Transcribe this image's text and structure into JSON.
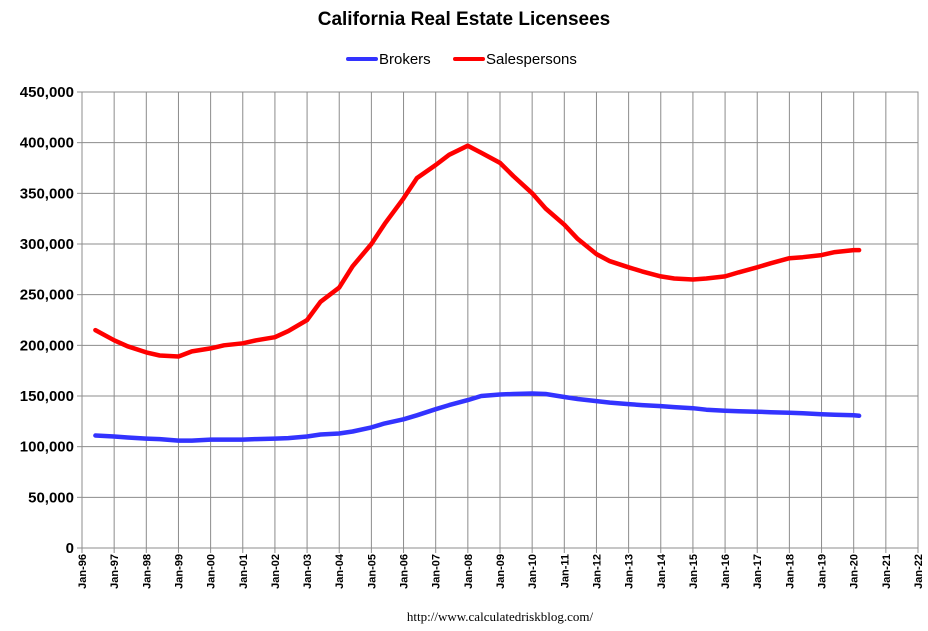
{
  "chart_data": {
    "type": "line",
    "title": "California Real Estate Licensees",
    "xlabel": "",
    "ylabel": "",
    "ylim": [
      0,
      450000
    ],
    "xlim": [
      "1996-01",
      "2022-01"
    ],
    "x_ticks": [
      "Jan-96",
      "Jan-97",
      "Jan-98",
      "Jan-99",
      "Jan-00",
      "Jan-01",
      "Jan-02",
      "Jan-03",
      "Jan-04",
      "Jan-05",
      "Jan-06",
      "Jan-07",
      "Jan-08",
      "Jan-09",
      "Jan-10",
      "Jan-11",
      "Jan-12",
      "Jan-13",
      "Jan-14",
      "Jan-15",
      "Jan-16",
      "Jan-17",
      "Jan-18",
      "Jan-19",
      "Jan-20",
      "Jan-21",
      "Jan-22"
    ],
    "y_ticks": [
      "0",
      "50,000",
      "100,000",
      "150,000",
      "200,000",
      "250,000",
      "300,000",
      "350,000",
      "400,000",
      "450,000"
    ],
    "grid": true,
    "legend_position": "top-center",
    "source_note": "http://www.calculatedriskblog.com/",
    "series": [
      {
        "name": "Brokers",
        "color": "#3333ff",
        "x": [
          "1996-06",
          "1997-01",
          "1997-06",
          "1998-01",
          "1998-06",
          "1999-01",
          "1999-06",
          "2000-01",
          "2000-06",
          "2001-01",
          "2001-06",
          "2002-01",
          "2002-06",
          "2003-01",
          "2003-06",
          "2004-01",
          "2004-06",
          "2005-01",
          "2005-06",
          "2006-01",
          "2006-06",
          "2007-01",
          "2007-06",
          "2008-01",
          "2008-06",
          "2009-01",
          "2009-06",
          "2010-01",
          "2010-06",
          "2011-01",
          "2011-06",
          "2012-01",
          "2012-06",
          "2013-01",
          "2013-06",
          "2014-01",
          "2014-06",
          "2015-01",
          "2015-06",
          "2016-01",
          "2016-06",
          "2017-01",
          "2017-06",
          "2018-01",
          "2018-06",
          "2019-01",
          "2019-06",
          "2020-01",
          "2020-03"
        ],
        "values": [
          111000,
          110000,
          109000,
          108000,
          107500,
          106000,
          106000,
          107000,
          107000,
          107000,
          107500,
          108000,
          108500,
          110000,
          112000,
          113000,
          115000,
          119000,
          123000,
          127000,
          131000,
          137000,
          141000,
          146000,
          150000,
          151500,
          152000,
          152500,
          152000,
          149000,
          147000,
          145000,
          143500,
          142000,
          141000,
          140000,
          139000,
          138000,
          136500,
          135500,
          135000,
          134500,
          134000,
          133500,
          133000,
          132000,
          131500,
          131000,
          130500
        ]
      },
      {
        "name": "Salespersons",
        "color": "#ff0000",
        "x": [
          "1996-06",
          "1997-01",
          "1997-06",
          "1998-01",
          "1998-06",
          "1999-01",
          "1999-06",
          "2000-01",
          "2000-06",
          "2001-01",
          "2001-06",
          "2002-01",
          "2002-06",
          "2003-01",
          "2003-06",
          "2004-01",
          "2004-06",
          "2005-01",
          "2005-06",
          "2006-01",
          "2006-06",
          "2007-01",
          "2007-06",
          "2008-01",
          "2008-06",
          "2009-01",
          "2009-06",
          "2010-01",
          "2010-06",
          "2011-01",
          "2011-06",
          "2012-01",
          "2012-06",
          "2013-01",
          "2013-06",
          "2014-01",
          "2014-06",
          "2015-01",
          "2015-06",
          "2016-01",
          "2016-06",
          "2017-01",
          "2017-06",
          "2018-01",
          "2018-06",
          "2019-01",
          "2019-06",
          "2020-01",
          "2020-03"
        ],
        "values": [
          215000,
          205000,
          199000,
          193000,
          190000,
          189000,
          194000,
          197000,
          200000,
          202000,
          205000,
          208000,
          214000,
          225000,
          243000,
          257000,
          278000,
          300000,
          320000,
          345000,
          365000,
          378000,
          388000,
          397000,
          390000,
          380000,
          367000,
          350000,
          335000,
          319000,
          305000,
          290000,
          283000,
          277000,
          273000,
          268000,
          266000,
          265000,
          266000,
          268000,
          272000,
          277000,
          281000,
          286000,
          287000,
          289000,
          292000,
          294000,
          294000
        ]
      }
    ]
  }
}
